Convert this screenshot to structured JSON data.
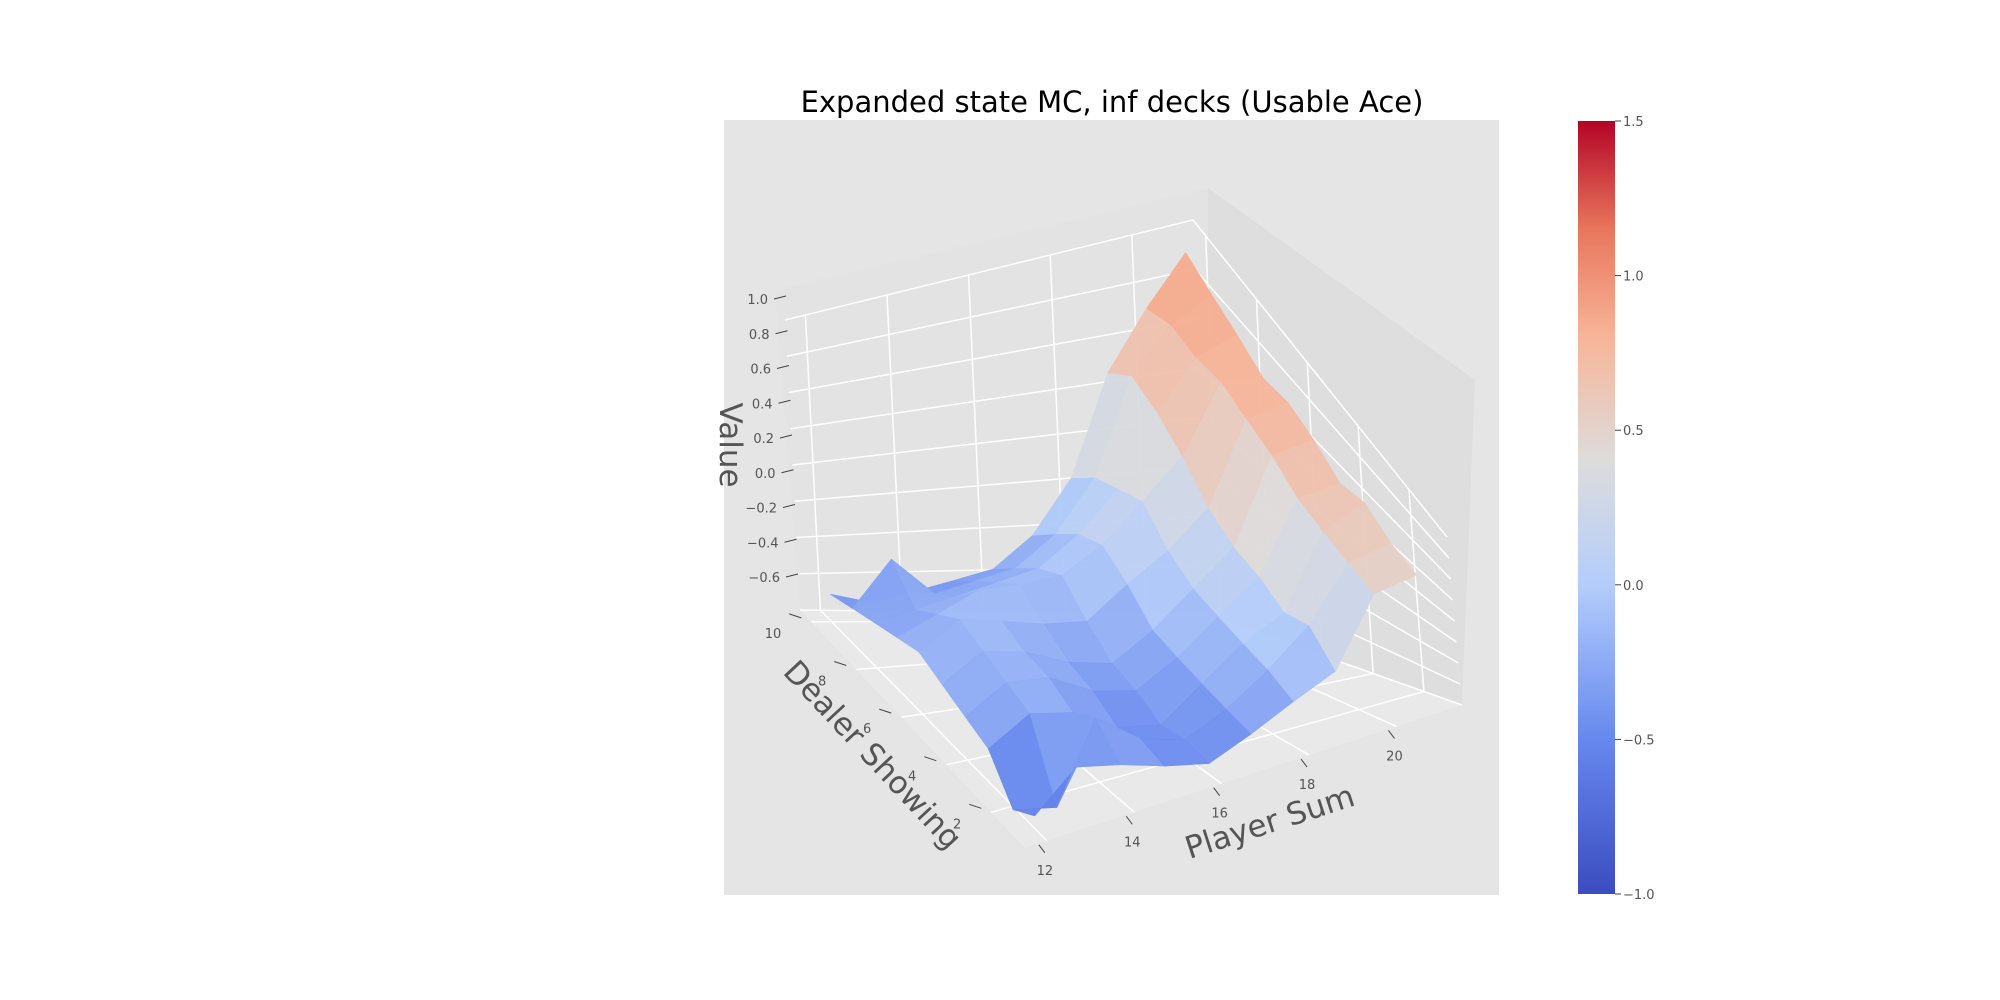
{
  "chart_data": {
    "type": "surface3d",
    "title": "Expanded state MC, inf decks (Usable Ace)",
    "xlabel": "Player Sum",
    "ylabel": "Dealer Showing",
    "zlabel": "Value",
    "x": [
      12,
      13,
      14,
      15,
      16,
      17,
      18,
      19,
      20,
      21
    ],
    "y": [
      1,
      2,
      3,
      4,
      5,
      6,
      7,
      8,
      9,
      10
    ],
    "x_ticks": [
      "12",
      "14",
      "16",
      "18",
      "20"
    ],
    "y_ticks": [
      "2",
      "4",
      "6",
      "8",
      "10"
    ],
    "z_ticks": [
      "−0.6",
      "−0.4",
      "−0.2",
      "0.0",
      "0.2",
      "0.4",
      "0.6",
      "0.8",
      "1.0"
    ],
    "zlim": [
      -0.6,
      1.0
    ],
    "z": [
      [
        -0.52,
        -0.3,
        -0.36,
        -0.45,
        -0.52,
        -0.4,
        -0.25,
        -0.1,
        0.45,
        0.55
      ],
      [
        -0.62,
        -0.68,
        -0.2,
        -0.4,
        -0.48,
        -0.35,
        -0.15,
        0.1,
        0.5,
        0.6
      ],
      [
        -0.4,
        -0.25,
        -0.3,
        -0.45,
        -0.5,
        -0.3,
        -0.1,
        0.05,
        0.55,
        0.7
      ],
      [
        -0.35,
        -0.2,
        -0.22,
        -0.35,
        -0.4,
        -0.25,
        -0.05,
        0.15,
        0.6,
        0.65
      ],
      [
        -0.3,
        -0.15,
        -0.2,
        -0.3,
        -0.35,
        -0.2,
        0.0,
        0.2,
        0.7,
        0.75
      ],
      [
        -0.25,
        -0.1,
        -0.15,
        -0.2,
        -0.22,
        -0.05,
        0.1,
        0.3,
        0.75,
        0.8
      ],
      [
        -0.3,
        -0.2,
        -0.1,
        -0.1,
        -0.08,
        0.05,
        0.25,
        0.45,
        0.8,
        0.78
      ],
      [
        -0.35,
        -0.3,
        -0.25,
        -0.2,
        -0.15,
        0.0,
        0.2,
        0.55,
        0.78,
        0.85
      ],
      [
        -0.4,
        -0.15,
        -0.35,
        -0.3,
        -0.25,
        -0.1,
        0.15,
        0.6,
        0.8,
        0.9
      ],
      [
        -0.45,
        -0.5,
        -0.45,
        -0.4,
        -0.35,
        -0.2,
        0.05,
        0.5,
        0.75,
        0.95
      ]
    ],
    "colorbar": {
      "ticks": [
        "−1.0",
        "−0.5",
        "0.0",
        "0.5",
        "1.0",
        "1.5"
      ],
      "range": [
        -1.0,
        1.5
      ],
      "colormap": "coolwarm"
    },
    "colors": {
      "pane": "#e5e5e5",
      "grid": "#ffffff",
      "low": "#3b4cc0",
      "mid": "#dddcdc",
      "high": "#b40426"
    }
  }
}
